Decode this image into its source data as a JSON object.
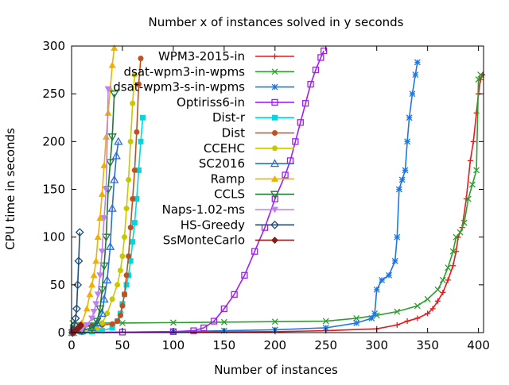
{
  "chart_data": {
    "type": "line",
    "title": "Number x of instances solved in y seconds",
    "xlabel": "Number of instances",
    "ylabel": "CPU time in seconds",
    "xlim": [
      0,
      405
    ],
    "ylim": [
      0,
      300
    ],
    "xticks": [
      "0",
      "50",
      "100",
      "150",
      "200",
      "250",
      "300",
      "350",
      "400"
    ],
    "xtick_values": [
      0,
      50,
      100,
      150,
      200,
      250,
      300,
      350,
      400
    ],
    "yticks": [
      "0",
      "50",
      "100",
      "150",
      "200",
      "250",
      "300"
    ],
    "ytick_values": [
      0,
      50,
      100,
      150,
      200,
      250,
      300
    ],
    "grid": false,
    "legend_position": "top-right",
    "series": [
      {
        "name": "WPM3-2015-in",
        "color": "#e41a1c",
        "marker": "plus",
        "x": [
          1,
          100,
          200,
          250,
          300,
          320,
          330,
          340,
          350,
          355,
          360,
          365,
          370,
          375,
          378,
          380,
          384,
          388,
          392,
          395,
          398,
          400,
          402,
          404
        ],
        "y": [
          0,
          0.5,
          1,
          2,
          4,
          8,
          12,
          15,
          20,
          25,
          33,
          42,
          55,
          70,
          85,
          100,
          110,
          140,
          180,
          200,
          230,
          250,
          265,
          270
        ]
      },
      {
        "name": "dsat-wpm3-in-wpms",
        "color": "#2ca02c",
        "marker": "cross",
        "x": [
          1,
          50,
          100,
          150,
          200,
          250,
          280,
          300,
          320,
          340,
          350,
          360,
          365,
          370,
          375,
          378,
          382,
          386,
          390,
          394,
          398,
          400,
          402
        ],
        "y": [
          10,
          10,
          10.5,
          11,
          11.5,
          12,
          15,
          18,
          22,
          28,
          35,
          45,
          55,
          68,
          85,
          100,
          105,
          115,
          140,
          155,
          170,
          265,
          270
        ]
      },
      {
        "name": "dsat-wpm3-s-in-wpms",
        "color": "#1f77e4",
        "marker": "star",
        "x": [
          1,
          100,
          150,
          200,
          250,
          280,
          295,
          298,
          300,
          305,
          312,
          318,
          320,
          322,
          325,
          328,
          330,
          332,
          335,
          338,
          340
        ],
        "y": [
          0,
          1,
          2,
          3,
          5,
          10,
          15,
          20,
          45,
          55,
          60,
          75,
          100,
          150,
          160,
          170,
          200,
          225,
          250,
          270,
          283
        ]
      },
      {
        "name": "Optiriss6-in",
        "color": "#a020f0",
        "marker": "square-open",
        "x": [
          1,
          50,
          100,
          120,
          130,
          140,
          150,
          160,
          170,
          180,
          190,
          200,
          210,
          215,
          220,
          225,
          230,
          235,
          240,
          245,
          248
        ],
        "y": [
          0,
          0.5,
          1,
          2,
          5,
          12,
          25,
          40,
          60,
          85,
          110,
          140,
          165,
          180,
          200,
          220,
          240,
          260,
          275,
          288,
          295
        ]
      },
      {
        "name": "Dist-r",
        "color": "#00d8e0",
        "marker": "square-filled",
        "x": [
          1,
          10,
          20,
          30,
          40,
          45,
          48,
          50,
          52,
          54,
          56,
          58,
          60,
          62,
          64,
          66,
          68,
          70
        ],
        "y": [
          0,
          0.5,
          1,
          2,
          5,
          12,
          20,
          30,
          40,
          50,
          60,
          75,
          95,
          115,
          140,
          170,
          200,
          225
        ]
      },
      {
        "name": "Dist",
        "color": "#c0501e",
        "marker": "circle-filled",
        "x": [
          1,
          10,
          20,
          30,
          40,
          45,
          48,
          50,
          52,
          54,
          56,
          58,
          60,
          62,
          64,
          66,
          68
        ],
        "y": [
          5,
          6,
          7,
          8,
          9,
          12,
          18,
          28,
          40,
          60,
          80,
          110,
          140,
          170,
          210,
          260,
          287
        ]
      },
      {
        "name": "CCEHC",
        "color": "#c8c800",
        "marker": "circle-filled",
        "x": [
          1,
          10,
          20,
          25,
          30,
          35,
          40,
          45,
          48,
          50,
          52,
          54,
          56,
          58,
          60,
          62
        ],
        "y": [
          0,
          1,
          2,
          5,
          10,
          20,
          35,
          50,
          65,
          80,
          100,
          130,
          160,
          200,
          240,
          270
        ]
      },
      {
        "name": "SC2016",
        "color": "#2a6ed8",
        "marker": "triangle-open",
        "x": [
          1,
          10,
          20,
          25,
          30,
          32,
          35,
          38,
          40,
          42,
          44,
          46
        ],
        "y": [
          0,
          2,
          5,
          10,
          20,
          35,
          55,
          90,
          130,
          160,
          185,
          200
        ]
      },
      {
        "name": "Ramp",
        "color": "#f0b000",
        "marker": "triangle-filled",
        "x": [
          1,
          5,
          10,
          15,
          18,
          20,
          22,
          24,
          26,
          28,
          30,
          32,
          34,
          36,
          38,
          40,
          42
        ],
        "y": [
          0,
          5,
          10,
          25,
          40,
          50,
          60,
          75,
          100,
          120,
          145,
          175,
          205,
          230,
          255,
          280,
          298
        ]
      },
      {
        "name": "CCLS",
        "color": "#1a7a30",
        "marker": "triangle-down",
        "x": [
          1,
          10,
          20,
          25,
          28,
          30,
          32,
          34,
          36,
          38,
          40,
          42
        ],
        "y": [
          0,
          2,
          5,
          12,
          25,
          45,
          70,
          100,
          150,
          178,
          205,
          250
        ]
      },
      {
        "name": "Naps-1.02-ms",
        "color": "#c080f0",
        "marker": "triangle-down-filled",
        "x": [
          1,
          10,
          15,
          20,
          22,
          24,
          26,
          28,
          30,
          32,
          34,
          36
        ],
        "y": [
          0,
          3,
          8,
          15,
          22,
          30,
          40,
          60,
          85,
          120,
          150,
          255
        ]
      },
      {
        "name": "HS-Greedy",
        "color": "#1f4f7a",
        "marker": "diamond-open",
        "x": [
          1,
          2,
          3,
          4,
          5,
          6,
          7,
          8
        ],
        "y": [
          0,
          3,
          8,
          15,
          25,
          50,
          75,
          105
        ]
      },
      {
        "name": "SsMonteCarlo",
        "color": "#8b1a1a",
        "marker": "diamond-filled",
        "x": [
          1,
          2,
          3,
          4,
          5,
          6,
          7,
          8,
          9
        ],
        "y": [
          0,
          0.5,
          1,
          2,
          3,
          4,
          5,
          6,
          8
        ]
      }
    ]
  }
}
